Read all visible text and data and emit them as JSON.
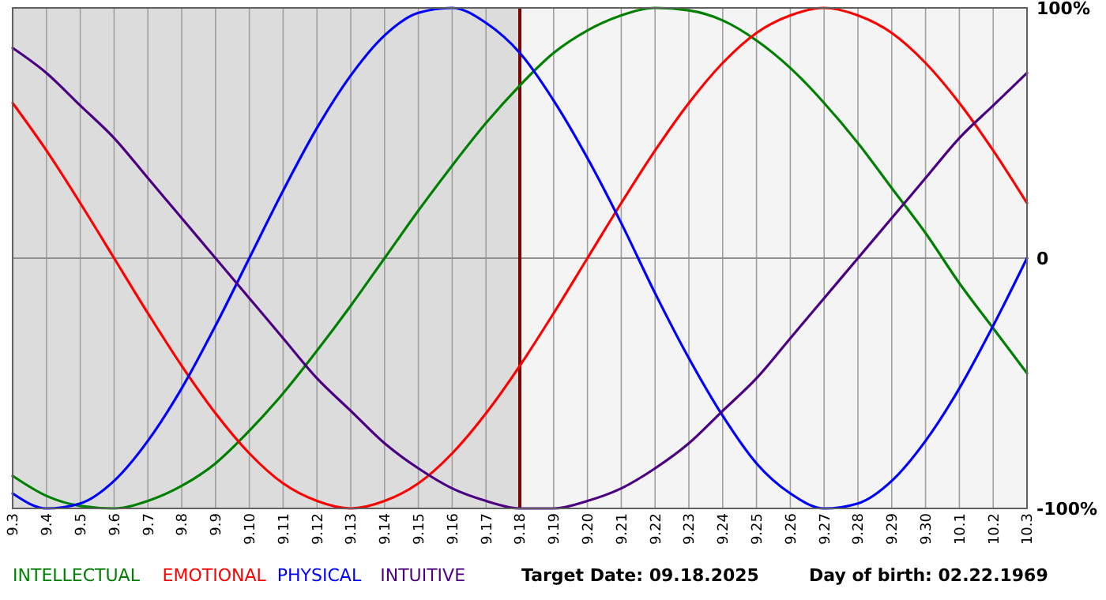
{
  "chart_data": {
    "type": "line",
    "categories": [
      "9.3",
      "9.4",
      "9.5",
      "9.6",
      "9.7",
      "9.8",
      "9.9",
      "9.10",
      "9.11",
      "9.12",
      "9.13",
      "9.14",
      "9.15",
      "9.16",
      "9.17",
      "9.18",
      "9.19",
      "9.20",
      "9.21",
      "9.22",
      "9.23",
      "9.24",
      "9.25",
      "9.26",
      "9.27",
      "9.28",
      "9.29",
      "9.30",
      "10.1",
      "10.2",
      "10.3"
    ],
    "series": [
      {
        "name": "INTELLECTUAL",
        "color": "#008000",
        "values": [
          -87,
          -95,
          -99,
          -100,
          -97,
          -91,
          -82,
          -69,
          -54,
          -37,
          -19,
          0,
          19,
          37,
          54,
          69,
          82,
          91,
          97,
          100,
          99,
          95,
          87,
          76,
          62,
          46,
          28,
          10,
          -10,
          -28,
          -46
        ]
      },
      {
        "name": "EMOTIONAL",
        "color": "#ff0000",
        "values": [
          62,
          43,
          22,
          0,
          -22,
          -43,
          -62,
          -78,
          -90,
          -97,
          -100,
          -97,
          -90,
          -78,
          -62,
          -43,
          -22,
          0,
          22,
          43,
          62,
          78,
          90,
          97,
          100,
          97,
          90,
          78,
          62,
          43,
          22
        ]
      },
      {
        "name": "PHYSICAL",
        "color": "#0000ff",
        "values": [
          -94,
          -100,
          -98,
          -89,
          -73,
          -52,
          -27,
          0,
          27,
          52,
          73,
          89,
          98,
          100,
          94,
          82,
          63,
          40,
          14,
          -14,
          -40,
          -63,
          -82,
          -94,
          -100,
          -98,
          -89,
          -73,
          -52,
          -27,
          0
        ]
      },
      {
        "name": "INTUITIVE",
        "color": "#4b0082",
        "values": [
          84,
          74,
          61,
          48,
          32,
          16,
          0,
          -16,
          -32,
          -48,
          -61,
          -74,
          -84,
          -92,
          -97,
          -100,
          -100,
          -97,
          -92,
          -84,
          -74,
          -61,
          -48,
          -32,
          -16,
          0,
          16,
          32,
          48,
          61,
          74
        ]
      }
    ],
    "ylim": [
      -100,
      100
    ],
    "yticks": [
      {
        "value": -100,
        "label": "-100%"
      },
      0,
      {
        "value": 100,
        "label": "100%"
      }
    ],
    "grid": true,
    "legend": "bottom",
    "ref_lines": [
      {
        "axis": "x",
        "value": "9.18",
        "color": "#800000"
      }
    ],
    "bands": [
      {
        "axis": "x",
        "from": "9.3",
        "to": "9.18",
        "color": "#dcdcdc"
      }
    ],
    "annotations": [
      "Target Date: 09.18.2025",
      "Day of birth: 02.22.1969"
    ]
  }
}
